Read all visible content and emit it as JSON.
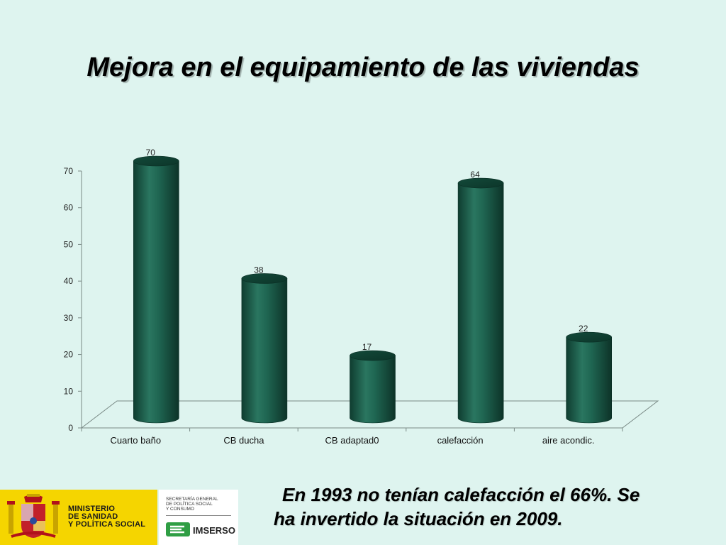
{
  "title": "Mejora en el equipamiento de las viviendas",
  "caption": {
    "line1": "En 1993 no tenían calefacción el 66%. Se",
    "line2": "ha invertido la situación en 2009."
  },
  "logos": {
    "ministry_lines": [
      "MINISTERIO",
      "DE SANIDAD",
      "Y POLÍTICA SOCIAL"
    ],
    "secretaria_lines": [
      "SECRETARÍA GENERAL",
      "DE POLÍTICA SOCIAL",
      "Y CONSUMO"
    ],
    "imserso": "IMSERSO"
  },
  "colors": {
    "background": "#def4ef",
    "bar": "#1b5e4b",
    "bar_dark": "#0f3d30",
    "bar_light": "#2f8068",
    "ministry_yellow": "#f5d500"
  },
  "chart_data": {
    "type": "bar",
    "style": "3d-cylinder",
    "categories": [
      "Cuarto baño",
      "CB ducha",
      "CB adaptad0",
      "calefacción",
      "aire acondic."
    ],
    "values": [
      70,
      38,
      17,
      64,
      22
    ],
    "data_labels": [
      "70",
      "38",
      "17",
      "64",
      "22"
    ],
    "yticks": [
      0,
      10,
      20,
      30,
      40,
      50,
      60,
      70
    ],
    "ylim": [
      0,
      70
    ],
    "grid": false,
    "legend": "none"
  }
}
